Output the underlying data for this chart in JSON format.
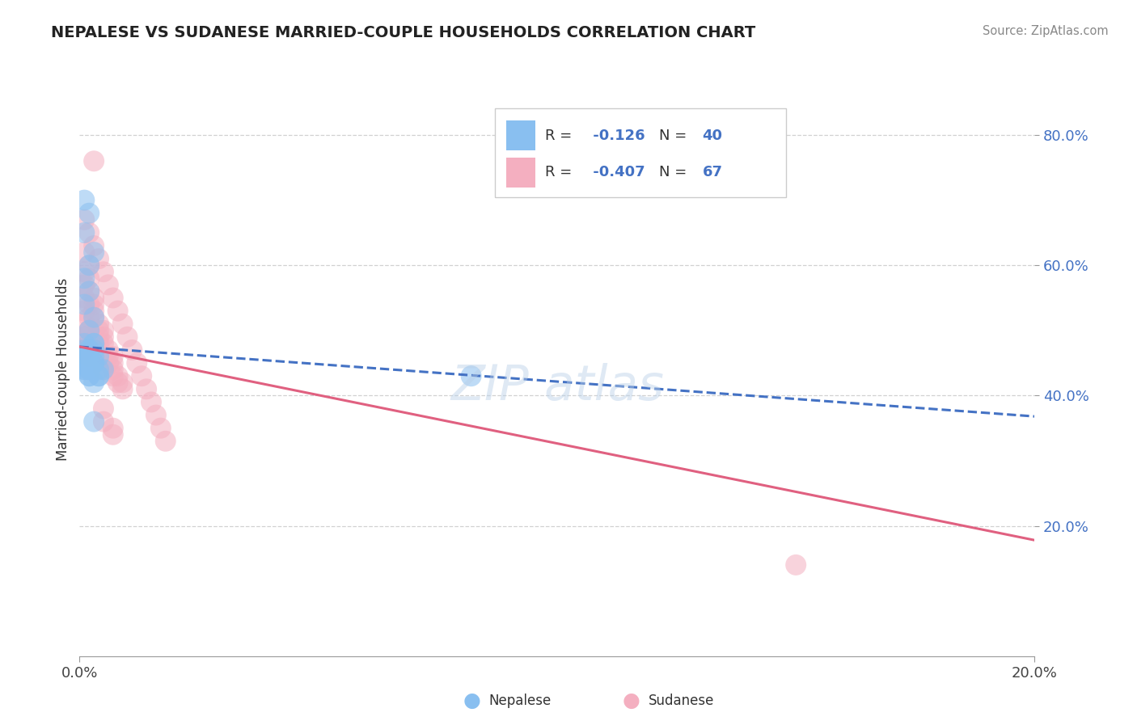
{
  "title": "NEPALESE VS SUDANESE MARRIED-COUPLE HOUSEHOLDS CORRELATION CHART",
  "source_text": "Source: ZipAtlas.com",
  "ylabel": "Married-couple Households",
  "xlim": [
    0.0,
    0.2
  ],
  "ylim": [
    0.0,
    0.88
  ],
  "xtick_positions": [
    0.0,
    0.2
  ],
  "xtick_labels": [
    "0.0%",
    "20.0%"
  ],
  "ytick_values": [
    0.2,
    0.4,
    0.6,
    0.8
  ],
  "ytick_labels": [
    "20.0%",
    "40.0%",
    "60.0%",
    "80.0%"
  ],
  "grid_color": "#cccccc",
  "background_color": "#ffffff",
  "nepalese_color": "#89bff0",
  "sudanese_color": "#f4afc0",
  "nepalese_line_color": "#4472C4",
  "sudanese_line_color": "#E06080",
  "nepalese_R": -0.126,
  "nepalese_N": 40,
  "sudanese_R": -0.407,
  "sudanese_N": 67,
  "nepalese_scatter_x": [
    0.001,
    0.002,
    0.001,
    0.003,
    0.002,
    0.001,
    0.002,
    0.001,
    0.003,
    0.002,
    0.001,
    0.003,
    0.002,
    0.001,
    0.002,
    0.001,
    0.003,
    0.002,
    0.001,
    0.002,
    0.003,
    0.002,
    0.001,
    0.002,
    0.003,
    0.001,
    0.002,
    0.001,
    0.002,
    0.003,
    0.004,
    0.003,
    0.002,
    0.004,
    0.005,
    0.004,
    0.003,
    0.082,
    0.004,
    0.003
  ],
  "nepalese_scatter_y": [
    0.7,
    0.68,
    0.65,
    0.62,
    0.6,
    0.58,
    0.56,
    0.54,
    0.52,
    0.5,
    0.48,
    0.47,
    0.46,
    0.45,
    0.44,
    0.47,
    0.46,
    0.45,
    0.44,
    0.43,
    0.48,
    0.47,
    0.46,
    0.47,
    0.48,
    0.46,
    0.45,
    0.44,
    0.43,
    0.45,
    0.46,
    0.45,
    0.44,
    0.43,
    0.44,
    0.43,
    0.42,
    0.43,
    0.44,
    0.36
  ],
  "sudanese_scatter_x": [
    0.001,
    0.002,
    0.001,
    0.002,
    0.001,
    0.002,
    0.001,
    0.002,
    0.001,
    0.002,
    0.001,
    0.002,
    0.001,
    0.002,
    0.001,
    0.002,
    0.001,
    0.002,
    0.001,
    0.002,
    0.003,
    0.003,
    0.003,
    0.003,
    0.004,
    0.004,
    0.004,
    0.004,
    0.005,
    0.005,
    0.005,
    0.006,
    0.006,
    0.006,
    0.007,
    0.007,
    0.007,
    0.008,
    0.008,
    0.009,
    0.001,
    0.002,
    0.003,
    0.004,
    0.005,
    0.006,
    0.007,
    0.008,
    0.009,
    0.01,
    0.011,
    0.012,
    0.013,
    0.014,
    0.015,
    0.016,
    0.017,
    0.018,
    0.003,
    0.005,
    0.007,
    0.15,
    0.005,
    0.007,
    0.009,
    0.005,
    0.007
  ],
  "sudanese_scatter_y": [
    0.62,
    0.6,
    0.59,
    0.58,
    0.57,
    0.56,
    0.55,
    0.54,
    0.53,
    0.52,
    0.51,
    0.5,
    0.49,
    0.48,
    0.47,
    0.5,
    0.49,
    0.48,
    0.47,
    0.46,
    0.55,
    0.54,
    0.53,
    0.52,
    0.51,
    0.5,
    0.49,
    0.48,
    0.5,
    0.49,
    0.48,
    0.47,
    0.46,
    0.45,
    0.46,
    0.45,
    0.44,
    0.43,
    0.42,
    0.41,
    0.67,
    0.65,
    0.63,
    0.61,
    0.59,
    0.57,
    0.55,
    0.53,
    0.51,
    0.49,
    0.47,
    0.45,
    0.43,
    0.41,
    0.39,
    0.37,
    0.35,
    0.33,
    0.76,
    0.38,
    0.35,
    0.14,
    0.44,
    0.43,
    0.42,
    0.36,
    0.34
  ],
  "nepalese_trend_x": [
    0.0,
    0.2
  ],
  "nepalese_trend_y": [
    0.475,
    0.368
  ],
  "sudanese_trend_x": [
    0.0,
    0.2
  ],
  "sudanese_trend_y": [
    0.475,
    0.178
  ],
  "watermark_text": "ZIPAtlas"
}
